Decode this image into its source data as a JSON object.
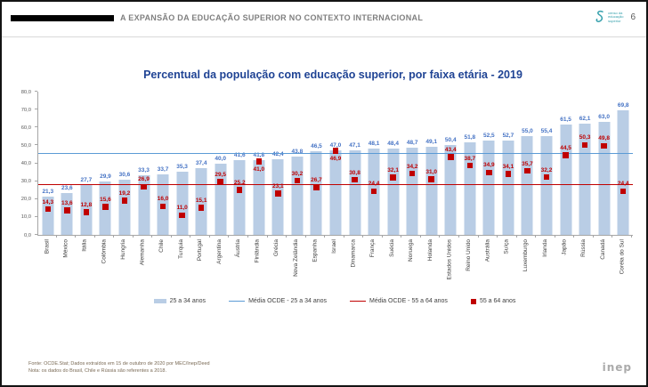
{
  "header": {
    "title": "A EXPANSÃO DA EDUCAÇÃO SUPERIOR NO CONTEXTO INTERNACIONAL",
    "logo_lines": [
      "censo da",
      "educação",
      "superior"
    ],
    "page_number": "6"
  },
  "chart_data": {
    "type": "bar",
    "title": "Percentual da população com educação superior, por faixa etária - 2019",
    "categories": [
      "Brasil",
      "México",
      "Itália",
      "Colômbia",
      "Hungria",
      "Alemanha",
      "Chile",
      "Turquia",
      "Portugal",
      "Argentina",
      "Áustria",
      "Finlândia",
      "Grécia",
      "Nova Zelândia",
      "Espanha",
      "Israel",
      "Dinamarca",
      "França",
      "Suécia",
      "Noruega",
      "Holanda",
      "Estados Unidos",
      "Reino Unido",
      "Austrália",
      "Suíça",
      "Luxemburgo",
      "Irlanda",
      "Japão",
      "Rússia",
      "Canadá",
      "Coréia do Sul"
    ],
    "series": [
      {
        "name": "25 a 34 anos",
        "mark": "bar",
        "values": [
          21.3,
          23.6,
          27.7,
          29.9,
          30.6,
          33.3,
          33.7,
          35.3,
          37.4,
          40.0,
          41.6,
          41.8,
          42.4,
          43.8,
          46.5,
          47.0,
          47.1,
          48.1,
          48.4,
          48.7,
          49.1,
          50.4,
          51.8,
          52.5,
          52.7,
          55.0,
          55.4,
          61.5,
          62.1,
          63.0,
          69.8
        ]
      },
      {
        "name": "55 a 64 anos",
        "mark": "square",
        "values": [
          14.3,
          13.6,
          12.8,
          15.6,
          19.2,
          26.9,
          16.0,
          11.0,
          15.1,
          29.5,
          25.2,
          41.0,
          23.1,
          30.2,
          26.7,
          46.9,
          30.8,
          24.4,
          32.1,
          34.2,
          31.0,
          43.4,
          38.7,
          34.9,
          34.1,
          35.7,
          32.2,
          44.5,
          50.3,
          49.8,
          24.4
        ]
      }
    ],
    "reference_lines": [
      {
        "name": "Média OCDE - 25 a 34 anos",
        "value": 45.0
      },
      {
        "name": "Média OCDE - 55 a 64 anos",
        "value": 27.9
      }
    ],
    "ylim": [
      0,
      80
    ],
    "ytick_step": 10,
    "grid": false,
    "legend_position": "bottom",
    "number_format": "decimal-comma, 1 casa decimal"
  },
  "colors": {
    "bar": "#B9CDE5",
    "bar_label": "#4472C4",
    "marker": "#C00000",
    "marker_label": "#C00000",
    "ocde_line_25_34": "#5B9BD5",
    "ocde_line_55_64": "#C00000",
    "title": "#1F4394",
    "logo_teal": "#35A0AC"
  },
  "legend": {
    "items": [
      {
        "label": "25 a 34 anos",
        "swatch": "bar-swatch"
      },
      {
        "label": "Média OCDE - 25 a 34 anos",
        "swatch": "blue-line"
      },
      {
        "label": "Média OCDE - 55 a 64 anos",
        "swatch": "red-line"
      },
      {
        "label": "55 a 64 anos",
        "swatch": "red-square"
      }
    ]
  },
  "footer": {
    "source": "Fonte: OCDE.Stat; Dados extraídos em 15 de outubro de 2020 por MEC/Inep/Deed",
    "note": "Nota: os dados do Brasil, Chile e Rússia são referentes a 2018.",
    "inep_logo": "inep"
  }
}
